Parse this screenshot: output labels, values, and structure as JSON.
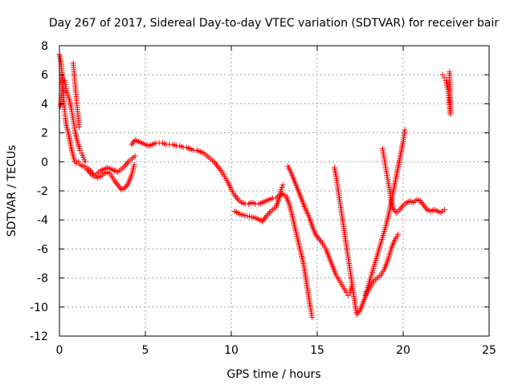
{
  "chart_data": {
    "type": "scatter",
    "title": "Day 267 of 2017, Sidereal Day-to-day VTEC variation (SDTVAR) for receiver bair",
    "xlabel": "GPS time / hours",
    "ylabel": "SDTVAR / TECUs",
    "xlim": [
      0,
      25
    ],
    "ylim": [
      -12,
      8
    ],
    "xticks": [
      "0",
      "5",
      "10",
      "15",
      "20",
      "25"
    ],
    "yticks": [
      "-12",
      "-10",
      "-8",
      "-6",
      "-4",
      "-2",
      "0",
      "2",
      "4",
      "6",
      "8"
    ],
    "grid": true,
    "marker": "+",
    "color": "#ff0000",
    "series": [
      {
        "points": [
          [
            0.0,
            7.4
          ],
          [
            0.1,
            6.8
          ],
          [
            0.15,
            5.9
          ],
          [
            0.2,
            5.2
          ],
          [
            0.25,
            4.3
          ],
          [
            0.3,
            3.6
          ],
          [
            0.35,
            3.0
          ],
          [
            0.4,
            2.5
          ],
          [
            0.5,
            2.1
          ],
          [
            0.6,
            1.5
          ],
          [
            0.7,
            0.9
          ],
          [
            0.8,
            0.4
          ],
          [
            0.9,
            0.0
          ],
          [
            1.0,
            -0.1
          ],
          [
            1.1,
            0.0
          ],
          [
            1.2,
            -0.2
          ],
          [
            1.4,
            -0.3
          ],
          [
            1.6,
            -0.5
          ],
          [
            1.8,
            -0.8
          ],
          [
            2.0,
            -1.0
          ],
          [
            2.2,
            -0.8
          ],
          [
            2.4,
            -0.6
          ],
          [
            2.6,
            -0.5
          ],
          [
            2.8,
            -0.4
          ],
          [
            3.0,
            -0.5
          ],
          [
            3.2,
            -0.6
          ],
          [
            3.4,
            -0.7
          ],
          [
            3.6,
            -0.5
          ],
          [
            3.8,
            -0.3
          ],
          [
            4.0,
            0.0
          ],
          [
            4.2,
            0.2
          ],
          [
            4.4,
            0.4
          ]
        ]
      },
      {
        "points": [
          [
            0.05,
            3.8
          ],
          [
            0.1,
            4.2
          ],
          [
            0.2,
            5.8
          ],
          [
            0.3,
            5.6
          ],
          [
            0.4,
            4.9
          ],
          [
            0.5,
            4.6
          ],
          [
            0.6,
            4.2
          ],
          [
            0.7,
            3.6
          ],
          [
            0.8,
            2.9
          ],
          [
            0.9,
            2.2
          ],
          [
            1.0,
            1.6
          ],
          [
            1.1,
            1.2
          ],
          [
            1.2,
            0.8
          ],
          [
            1.3,
            0.6
          ],
          [
            1.4,
            0.3
          ],
          [
            1.5,
            0.0
          ]
        ]
      },
      {
        "points": [
          [
            0.8,
            6.8
          ],
          [
            0.85,
            6.2
          ],
          [
            0.9,
            5.5
          ],
          [
            0.95,
            4.8
          ],
          [
            1.0,
            4.2
          ],
          [
            1.05,
            3.6
          ],
          [
            1.1,
            3.0
          ],
          [
            1.15,
            2.4
          ]
        ]
      },
      {
        "points": [
          [
            1.6,
            -0.4
          ],
          [
            1.8,
            -0.6
          ],
          [
            2.0,
            -0.9
          ],
          [
            2.2,
            -1.1
          ],
          [
            2.4,
            -1.0
          ],
          [
            2.6,
            -0.8
          ],
          [
            2.8,
            -0.7
          ],
          [
            3.0,
            -0.9
          ],
          [
            3.2,
            -1.3
          ],
          [
            3.4,
            -1.6
          ],
          [
            3.6,
            -1.9
          ],
          [
            3.8,
            -1.8
          ],
          [
            4.0,
            -1.5
          ],
          [
            4.2,
            -0.9
          ],
          [
            4.35,
            -0.2
          ]
        ]
      },
      {
        "points": [
          [
            4.2,
            1.2
          ],
          [
            4.4,
            1.5
          ],
          [
            4.6,
            1.4
          ],
          [
            4.8,
            1.3
          ],
          [
            5.0,
            1.2
          ],
          [
            5.2,
            1.1
          ],
          [
            5.4,
            1.2
          ],
          [
            5.6,
            1.3
          ],
          [
            5.8,
            1.3
          ],
          [
            6.0,
            1.3
          ],
          [
            6.2,
            1.2
          ],
          [
            6.4,
            1.2
          ],
          [
            6.6,
            1.2
          ],
          [
            6.8,
            1.1
          ],
          [
            7.0,
            1.1
          ],
          [
            7.2,
            1.0
          ],
          [
            7.4,
            1.0
          ],
          [
            7.6,
            0.9
          ],
          [
            7.8,
            0.8
          ],
          [
            8.0,
            0.8
          ],
          [
            8.2,
            0.7
          ],
          [
            8.4,
            0.6
          ],
          [
            8.6,
            0.4
          ],
          [
            8.8,
            0.2
          ],
          [
            9.0,
            0.0
          ],
          [
            9.2,
            -0.3
          ],
          [
            9.4,
            -0.6
          ],
          [
            9.6,
            -1.0
          ],
          [
            9.8,
            -1.4
          ],
          [
            10.0,
            -1.9
          ],
          [
            10.2,
            -2.3
          ],
          [
            10.4,
            -2.6
          ],
          [
            10.6,
            -2.8
          ],
          [
            10.8,
            -2.9
          ],
          [
            11.0,
            -2.9
          ],
          [
            11.2,
            -2.8
          ],
          [
            11.4,
            -2.9
          ],
          [
            11.6,
            -2.9
          ],
          [
            11.8,
            -2.8
          ],
          [
            12.0,
            -2.7
          ],
          [
            12.2,
            -2.6
          ],
          [
            12.4,
            -2.5
          ],
          [
            12.6,
            -2.5
          ],
          [
            12.8,
            -2.3
          ],
          [
            13.0,
            -2.2
          ],
          [
            13.2,
            -2.4
          ],
          [
            13.4,
            -3.0
          ],
          [
            13.6,
            -4.0
          ],
          [
            13.8,
            -5.0
          ],
          [
            14.0,
            -6.0
          ],
          [
            14.2,
            -7.0
          ],
          [
            14.4,
            -8.5
          ],
          [
            14.6,
            -10.0
          ],
          [
            14.7,
            -10.7
          ]
        ]
      },
      {
        "points": [
          [
            10.2,
            -3.4
          ],
          [
            10.5,
            -3.6
          ],
          [
            10.8,
            -3.7
          ],
          [
            11.2,
            -3.8
          ],
          [
            11.5,
            -3.9
          ],
          [
            11.8,
            -4.1
          ],
          [
            12.0,
            -3.8
          ],
          [
            12.3,
            -3.4
          ],
          [
            12.6,
            -3.1
          ],
          [
            12.8,
            -2.5
          ],
          [
            12.9,
            -1.9
          ],
          [
            13.0,
            -1.6
          ]
        ]
      },
      {
        "points": [
          [
            13.3,
            -0.3
          ],
          [
            13.5,
            -0.8
          ],
          [
            13.7,
            -1.4
          ],
          [
            13.9,
            -2.0
          ],
          [
            14.1,
            -2.6
          ],
          [
            14.3,
            -3.2
          ],
          [
            14.5,
            -3.7
          ],
          [
            14.7,
            -4.4
          ],
          [
            14.9,
            -5.0
          ],
          [
            15.1,
            -5.3
          ],
          [
            15.3,
            -5.6
          ],
          [
            15.5,
            -6.0
          ],
          [
            15.7,
            -6.6
          ],
          [
            15.9,
            -7.2
          ],
          [
            16.1,
            -7.8
          ],
          [
            16.3,
            -8.2
          ],
          [
            16.5,
            -8.6
          ],
          [
            16.7,
            -9.0
          ],
          [
            16.8,
            -9.2
          ],
          [
            16.9,
            -9.0
          ],
          [
            17.0,
            -8.6
          ]
        ]
      },
      {
        "points": [
          [
            16.0,
            -0.4
          ],
          [
            16.1,
            -1.0
          ],
          [
            16.2,
            -1.8
          ],
          [
            16.3,
            -2.6
          ],
          [
            16.4,
            -3.4
          ],
          [
            16.5,
            -4.2
          ],
          [
            16.6,
            -5.0
          ],
          [
            16.7,
            -5.8
          ],
          [
            16.8,
            -6.6
          ],
          [
            16.9,
            -7.4
          ],
          [
            17.0,
            -8.2
          ],
          [
            17.1,
            -9.0
          ],
          [
            17.2,
            -9.8
          ],
          [
            17.3,
            -10.5
          ],
          [
            17.5,
            -10.2
          ],
          [
            17.7,
            -9.6
          ],
          [
            17.9,
            -9.0
          ],
          [
            18.1,
            -8.6
          ],
          [
            18.3,
            -8.2
          ],
          [
            18.5,
            -8.0
          ],
          [
            18.7,
            -7.8
          ],
          [
            18.9,
            -7.4
          ],
          [
            19.1,
            -6.8
          ],
          [
            19.3,
            -6.0
          ],
          [
            19.5,
            -5.4
          ],
          [
            19.7,
            -5.0
          ]
        ]
      },
      {
        "points": [
          [
            17.8,
            -9.2
          ],
          [
            18.0,
            -8.4
          ],
          [
            18.2,
            -7.6
          ],
          [
            18.4,
            -6.8
          ],
          [
            18.6,
            -6.0
          ],
          [
            18.8,
            -5.2
          ],
          [
            19.0,
            -4.4
          ],
          [
            19.2,
            -3.4
          ],
          [
            19.4,
            -2.2
          ],
          [
            19.6,
            -1.0
          ],
          [
            19.8,
            0.2
          ],
          [
            20.0,
            1.4
          ],
          [
            20.1,
            2.2
          ]
        ]
      },
      {
        "points": [
          [
            18.8,
            0.9
          ],
          [
            18.9,
            0.2
          ],
          [
            19.0,
            -0.5
          ],
          [
            19.1,
            -1.2
          ],
          [
            19.2,
            -1.9
          ],
          [
            19.3,
            -2.6
          ],
          [
            19.4,
            -3.2
          ],
          [
            19.6,
            -3.5
          ],
          [
            19.8,
            -3.3
          ],
          [
            20.0,
            -3.0
          ],
          [
            20.2,
            -2.8
          ],
          [
            20.4,
            -2.7
          ],
          [
            20.6,
            -2.8
          ],
          [
            20.8,
            -2.6
          ],
          [
            21.0,
            -2.7
          ],
          [
            21.2,
            -3.0
          ],
          [
            21.4,
            -3.3
          ],
          [
            21.6,
            -3.4
          ],
          [
            21.8,
            -3.3
          ],
          [
            22.0,
            -3.4
          ],
          [
            22.2,
            -3.5
          ],
          [
            22.4,
            -3.3
          ]
        ]
      },
      {
        "points": [
          [
            22.3,
            6.0
          ],
          [
            22.4,
            5.8
          ],
          [
            22.5,
            5.6
          ],
          [
            22.6,
            5.0
          ],
          [
            22.65,
            4.4
          ],
          [
            22.7,
            3.8
          ],
          [
            22.75,
            3.3
          ],
          [
            22.7,
            6.2
          ]
        ]
      }
    ]
  }
}
